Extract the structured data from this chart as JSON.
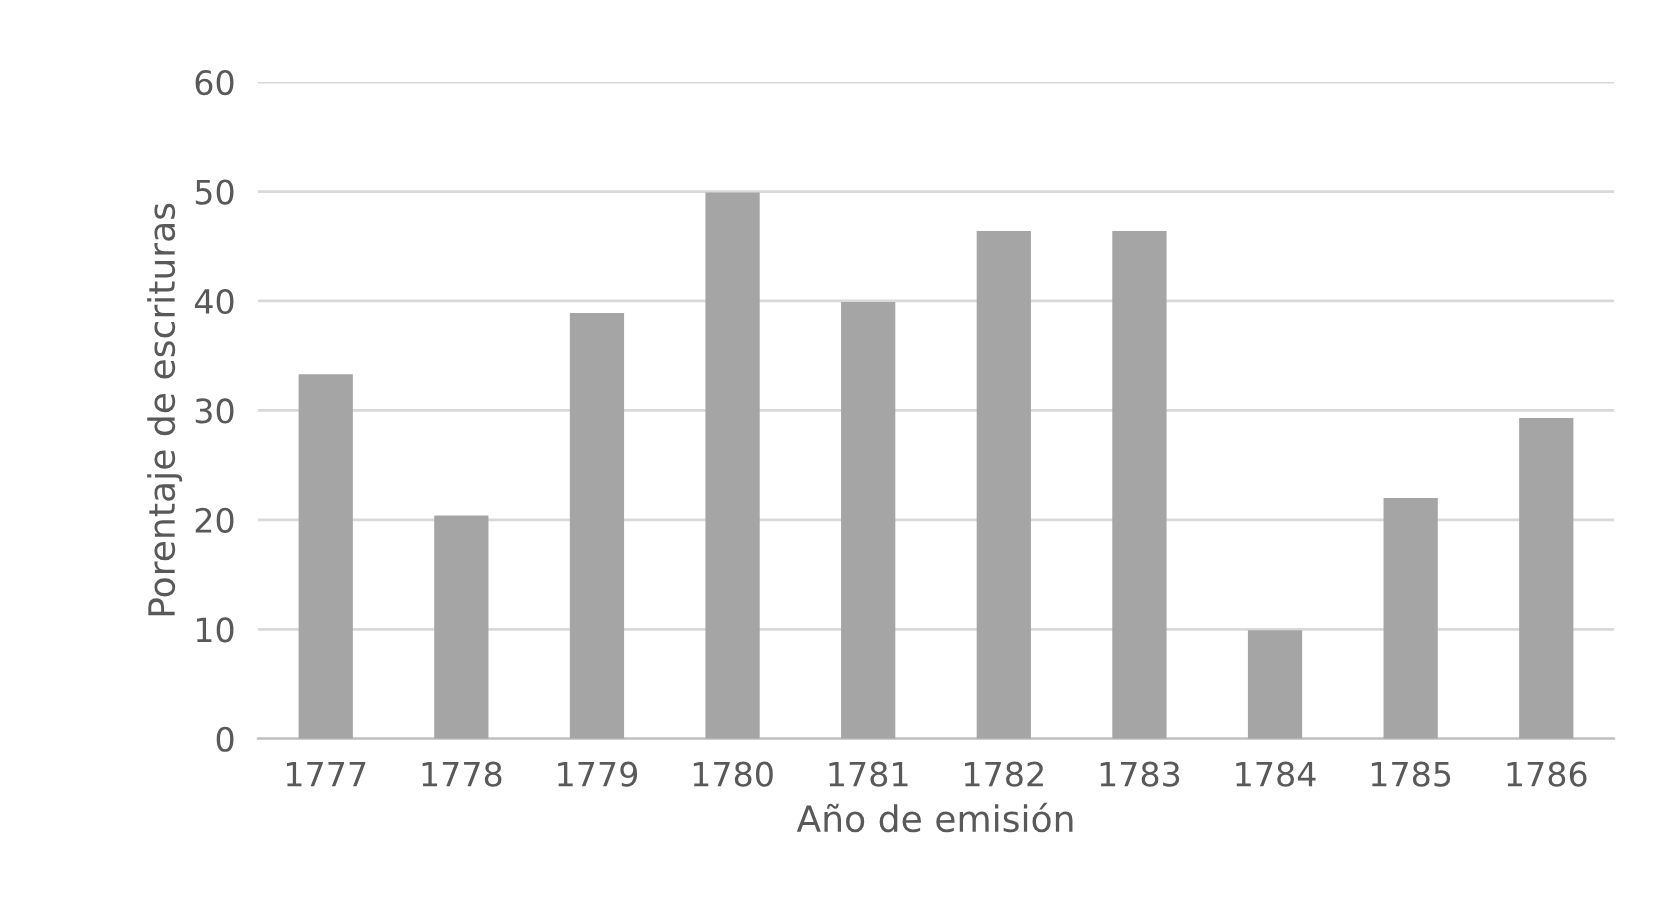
{
  "chart_data": {
    "type": "bar",
    "xlabel": "Año de emisión",
    "ylabel": "Porentaje de escrituras",
    "categories": [
      "1777",
      "1778",
      "1779",
      "1780",
      "1781",
      "1782",
      "1783",
      "1784",
      "1785",
      "1786"
    ],
    "values": [
      33.3,
      20.4,
      38.9,
      49.9,
      39.9,
      46.4,
      46.4,
      9.9,
      22.0,
      29.3
    ],
    "color": "#a5a5a5",
    "ylim": [
      0,
      60
    ],
    "yticks": [
      0,
      10,
      20,
      30,
      40,
      50,
      60
    ],
    "grid": "y"
  }
}
